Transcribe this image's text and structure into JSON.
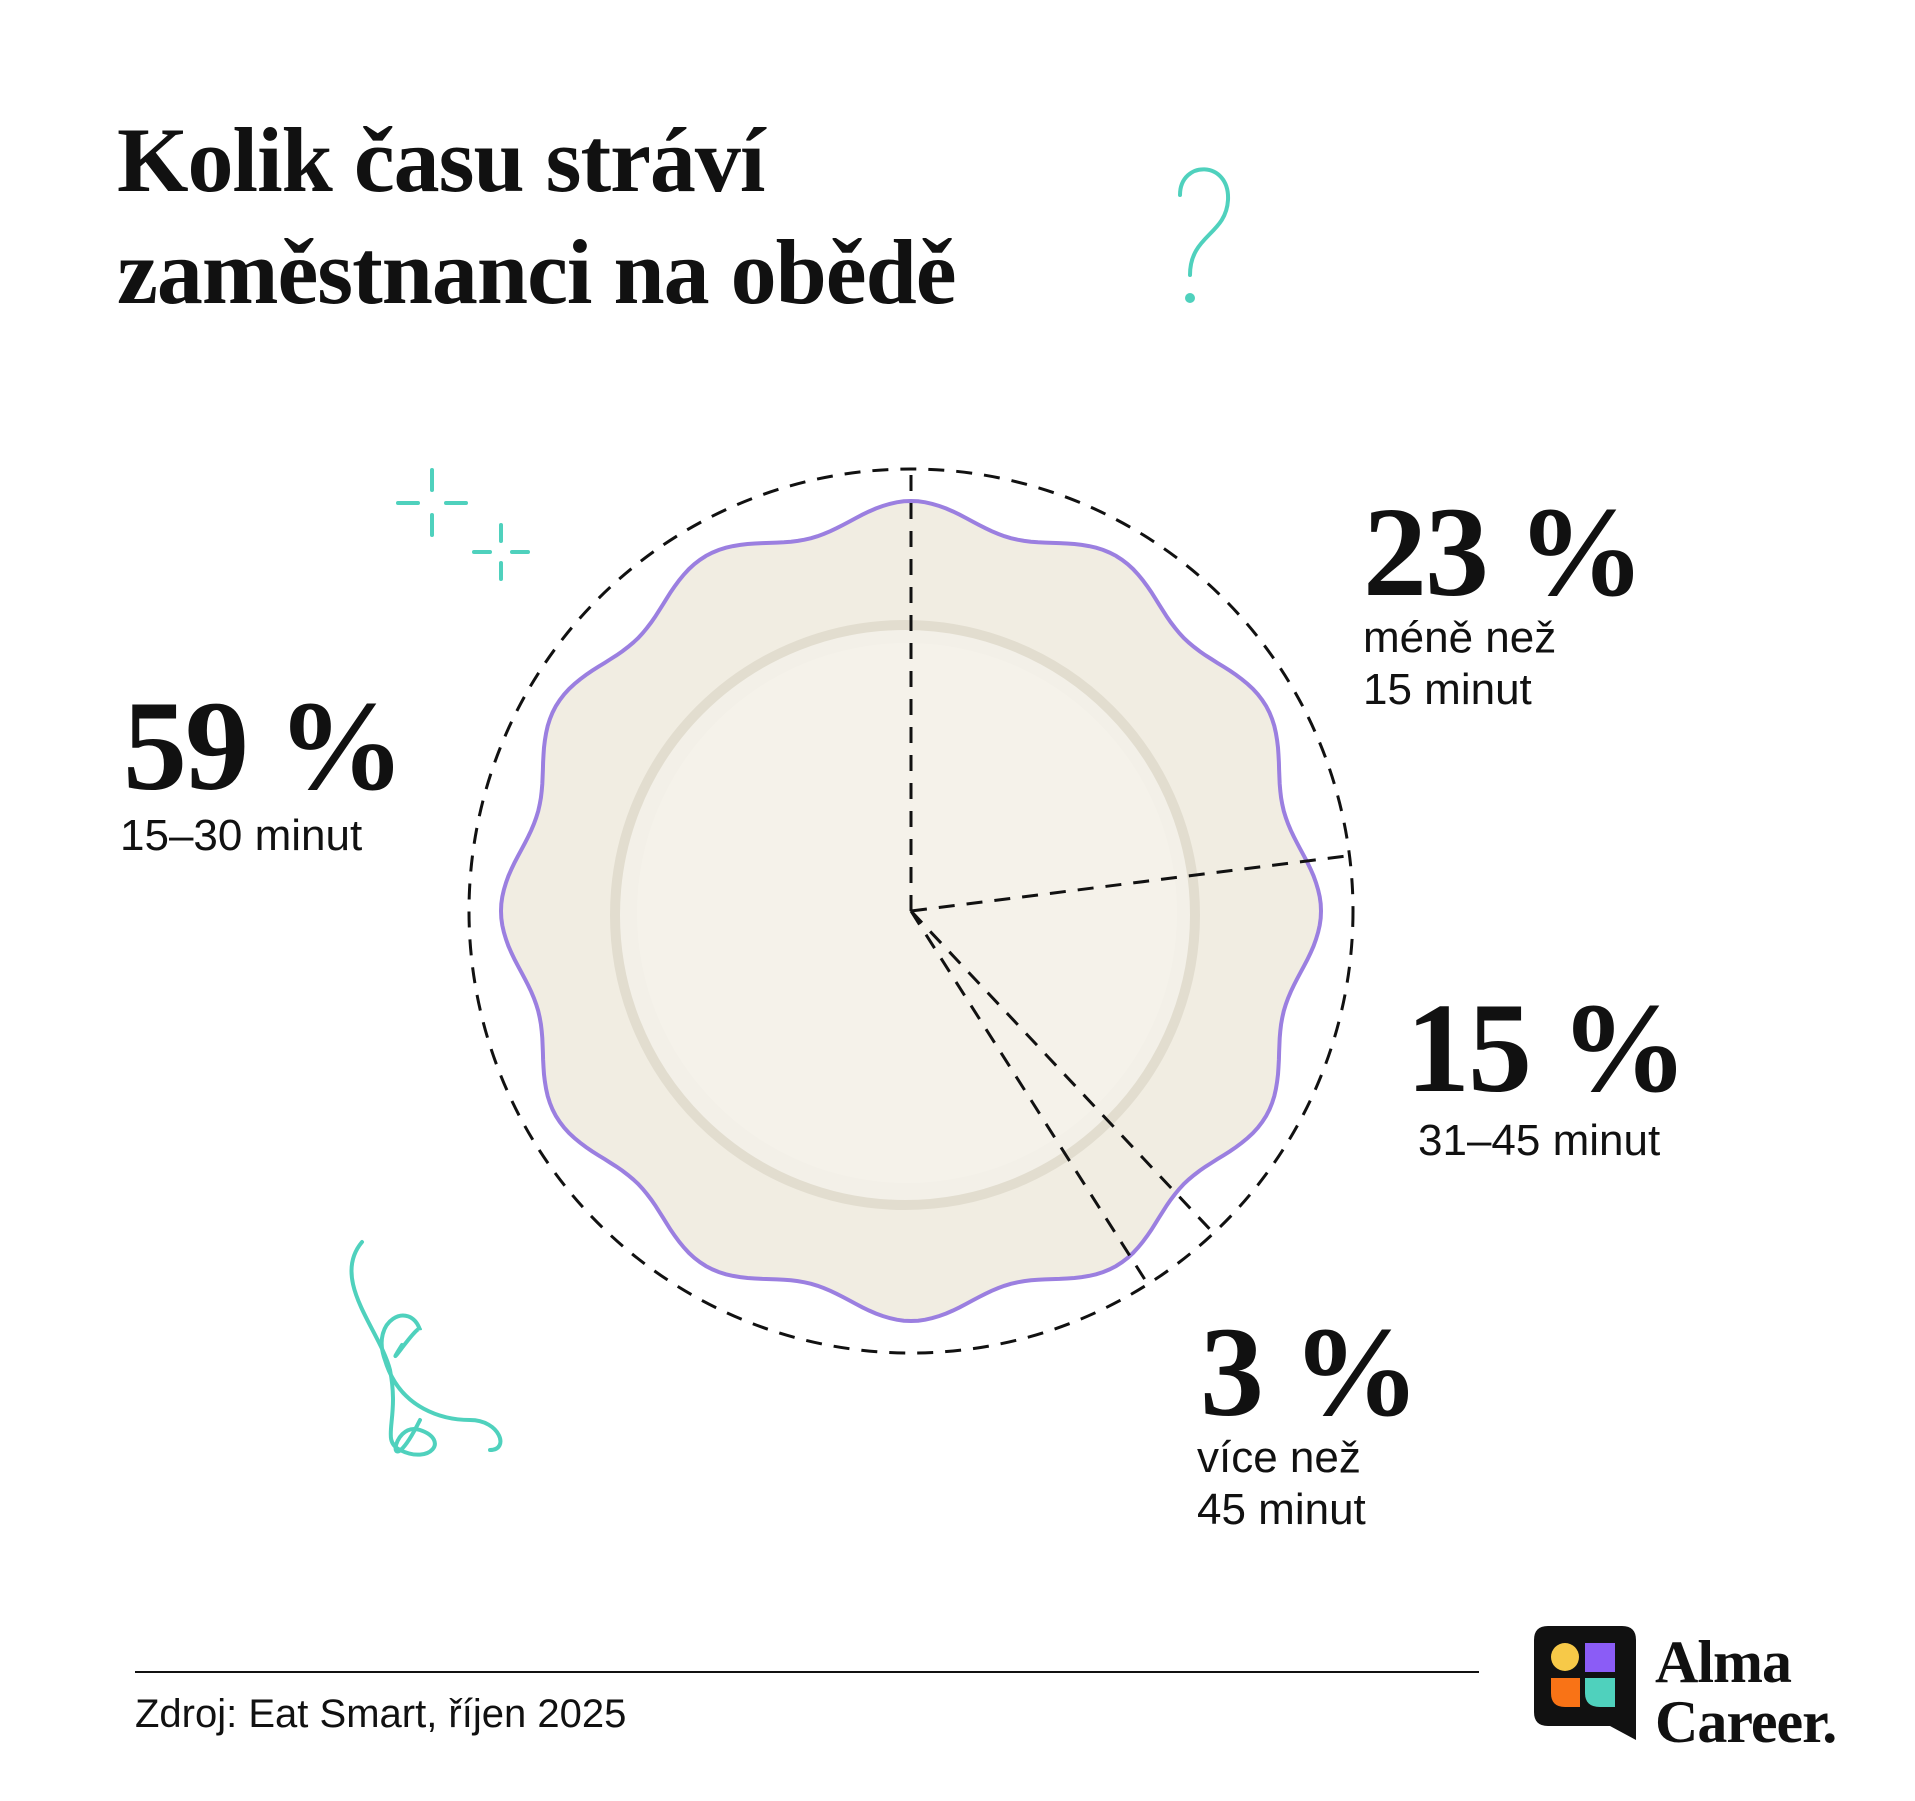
{
  "chart_data": {
    "type": "pie",
    "title": "Kolik času stráví\nzaměstnanci na obědě",
    "categories": [
      "méně než\n15 minut",
      "31–45 minut",
      "více než\n45 minut",
      "15–30 minut"
    ],
    "values": [
      23,
      15,
      3,
      59
    ],
    "value_labels": [
      "23 %",
      "15 %",
      "3 %",
      "59 %"
    ],
    "source": "Zdroj: Eat Smart, říjen 2025",
    "brand": "Alma\nCareer."
  }
}
